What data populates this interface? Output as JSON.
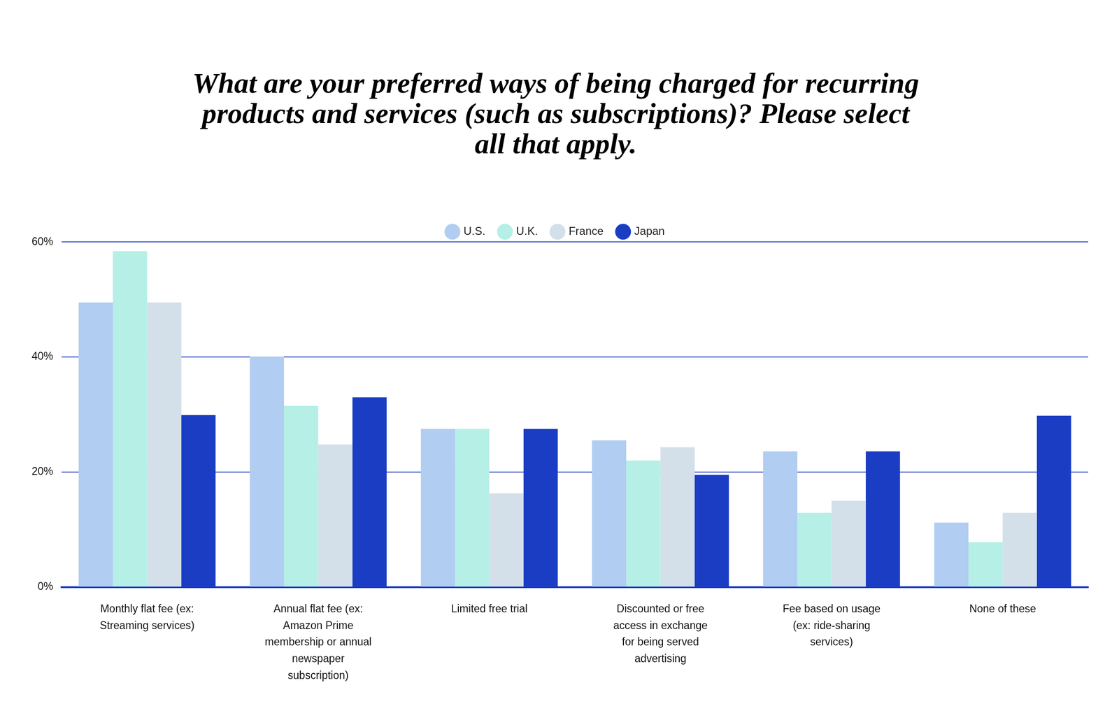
{
  "chart_data": {
    "type": "bar",
    "title": "What are your preferred ways of being charged for recurring products and services (such as subscriptions)? Please select all that apply.",
    "categories": [
      "Monthly flat fee (ex: Streaming services)",
      "Annual flat fee (ex: Amazon Prime membership or annual newspaper subscription)",
      "Limited free trial",
      "Discounted or free access in exchange for being served advertising",
      "Fee based on usage (ex: ride-sharing services)",
      "None of these"
    ],
    "series": [
      {
        "name": "U.S.",
        "color": "#b1cdf1",
        "values": [
          49.5,
          40.1,
          27.5,
          25.5,
          23.6,
          11.2
        ]
      },
      {
        "name": "U.K.",
        "color": "#b5efe6",
        "values": [
          58.4,
          31.5,
          27.5,
          22.0,
          12.9,
          7.8
        ]
      },
      {
        "name": "France",
        "color": "#d3dfe9",
        "values": [
          49.5,
          24.8,
          16.3,
          24.3,
          15.0,
          12.9
        ]
      },
      {
        "name": "Japan",
        "color": "#1a3dc4",
        "values": [
          29.9,
          33.0,
          27.5,
          19.5,
          23.6,
          29.8
        ]
      }
    ],
    "ylim": [
      0,
      60
    ],
    "yticks": [
      {
        "value": 0,
        "label": "0%"
      },
      {
        "value": 20,
        "label": "20%"
      },
      {
        "value": 40,
        "label": "40%"
      },
      {
        "value": 60,
        "label": "60%"
      }
    ],
    "grid": true,
    "legend": "top",
    "data_labels": false
  }
}
